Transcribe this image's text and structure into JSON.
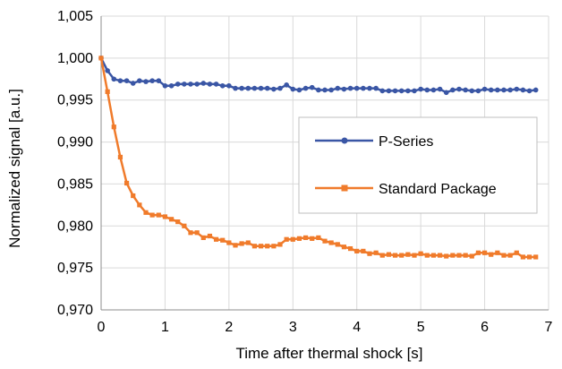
{
  "chart_data": {
    "type": "line",
    "xlabel": "Time after thermal shock [s]",
    "ylabel": "Normalized signal [a.u.]",
    "xlim": [
      0,
      7
    ],
    "ylim": [
      0.97,
      1.005
    ],
    "xticks": [
      0,
      1,
      2,
      3,
      4,
      5,
      6,
      7
    ],
    "xtick_labels": [
      "0",
      "1",
      "2",
      "3",
      "4",
      "5",
      "6",
      "7"
    ],
    "yticks": [
      0.97,
      0.975,
      0.98,
      0.985,
      0.99,
      0.995,
      1.0,
      1.005
    ],
    "ytick_labels": [
      "0,970",
      "0,975",
      "0,980",
      "0,985",
      "0,990",
      "0,995",
      "1,000",
      "1,005"
    ],
    "grid": true,
    "legend_position": "center-right",
    "series": [
      {
        "name": "P-Series",
        "color": "#3a56a5",
        "marker": "circle",
        "x": [
          0,
          0.1,
          0.2,
          0.3,
          0.4,
          0.5,
          0.6,
          0.7,
          0.8,
          0.9,
          1.0,
          1.1,
          1.2,
          1.3,
          1.4,
          1.5,
          1.6,
          1.7,
          1.8,
          1.9,
          2.0,
          2.1,
          2.2,
          2.3,
          2.4,
          2.5,
          2.6,
          2.7,
          2.8,
          2.9,
          3.0,
          3.1,
          3.2,
          3.3,
          3.4,
          3.5,
          3.6,
          3.7,
          3.8,
          3.9,
          4.0,
          4.1,
          4.2,
          4.3,
          4.4,
          4.5,
          4.6,
          4.7,
          4.8,
          4.9,
          5.0,
          5.1,
          5.2,
          5.3,
          5.4,
          5.5,
          5.6,
          5.7,
          5.8,
          5.9,
          6.0,
          6.1,
          6.2,
          6.3,
          6.4,
          6.5,
          6.6,
          6.7,
          6.8
        ],
        "y": [
          1.0,
          0.9985,
          0.9975,
          0.9973,
          0.9973,
          0.997,
          0.9973,
          0.9972,
          0.9973,
          0.9973,
          0.9967,
          0.9967,
          0.9969,
          0.9969,
          0.9969,
          0.9969,
          0.997,
          0.9969,
          0.9969,
          0.9967,
          0.9967,
          0.9964,
          0.9964,
          0.9964,
          0.9964,
          0.9964,
          0.9964,
          0.9963,
          0.9964,
          0.9968,
          0.9963,
          0.9962,
          0.9964,
          0.9965,
          0.9962,
          0.9962,
          0.9962,
          0.9964,
          0.9963,
          0.9964,
          0.9964,
          0.9964,
          0.9964,
          0.9964,
          0.9961,
          0.9961,
          0.9961,
          0.9961,
          0.9961,
          0.9961,
          0.9963,
          0.9962,
          0.9962,
          0.9963,
          0.9959,
          0.9962,
          0.9963,
          0.9962,
          0.9961,
          0.9961,
          0.9963,
          0.9962,
          0.9962,
          0.9962,
          0.9962,
          0.9963,
          0.9962,
          0.9961,
          0.9962
        ]
      },
      {
        "name": "Standard Package",
        "color": "#f07b2b",
        "marker": "square",
        "x": [
          0,
          0.1,
          0.2,
          0.3,
          0.4,
          0.5,
          0.6,
          0.7,
          0.8,
          0.9,
          1.0,
          1.1,
          1.2,
          1.3,
          1.4,
          1.5,
          1.6,
          1.7,
          1.8,
          1.9,
          2.0,
          2.1,
          2.2,
          2.3,
          2.4,
          2.5,
          2.6,
          2.7,
          2.8,
          2.9,
          3.0,
          3.1,
          3.2,
          3.3,
          3.4,
          3.5,
          3.6,
          3.7,
          3.8,
          3.9,
          4.0,
          4.1,
          4.2,
          4.3,
          4.4,
          4.5,
          4.6,
          4.7,
          4.8,
          4.9,
          5.0,
          5.1,
          5.2,
          5.3,
          5.4,
          5.5,
          5.6,
          5.7,
          5.8,
          5.9,
          6.0,
          6.1,
          6.2,
          6.3,
          6.4,
          6.5,
          6.6,
          6.7,
          6.8
        ],
        "y": [
          1.0,
          0.996,
          0.9918,
          0.9882,
          0.9851,
          0.9836,
          0.9825,
          0.9816,
          0.9813,
          0.9813,
          0.9811,
          0.9808,
          0.9805,
          0.98,
          0.9792,
          0.9792,
          0.9786,
          0.9788,
          0.9784,
          0.9783,
          0.978,
          0.9777,
          0.9779,
          0.978,
          0.9776,
          0.9776,
          0.9776,
          0.9776,
          0.9778,
          0.9784,
          0.9784,
          0.9785,
          0.9786,
          0.9785,
          0.9786,
          0.9782,
          0.978,
          0.9778,
          0.9775,
          0.9773,
          0.977,
          0.977,
          0.9767,
          0.9768,
          0.9765,
          0.9766,
          0.9765,
          0.9765,
          0.9766,
          0.9765,
          0.9767,
          0.9765,
          0.9765,
          0.9765,
          0.9764,
          0.9765,
          0.9765,
          0.9765,
          0.9764,
          0.9768,
          0.9768,
          0.9766,
          0.9768,
          0.9765,
          0.9765,
          0.9768,
          0.9763,
          0.9763,
          0.9763
        ]
      }
    ]
  }
}
